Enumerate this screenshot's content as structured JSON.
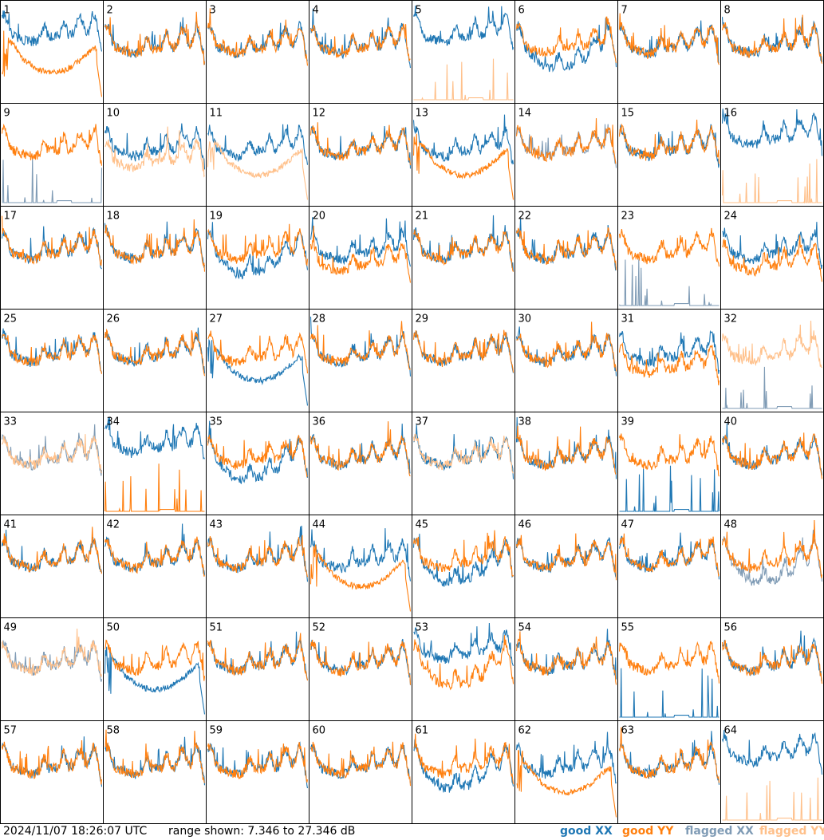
{
  "footer": {
    "timestamp": "2024/11/07 18:26:07 UTC",
    "range_text": "range shown: 7.346 to 27.346 dB"
  },
  "legend": [
    {
      "label": "good XX",
      "color": "#1f77b4"
    },
    {
      "label": "good YY",
      "color": "#ff7f0e"
    },
    {
      "label": "flagged XX",
      "color": "#7f9bb5"
    },
    {
      "label": "flagged YY",
      "color": "#ffc08a"
    }
  ],
  "chart_data": {
    "type": "line",
    "grid": "8x8 small multiples",
    "ylim": [
      7.346,
      27.346
    ],
    "y_unit": "dB",
    "panels": [
      {
        "label": "1",
        "xx": {
          "flagged": false,
          "shape": "high"
        },
        "yy": {
          "flagged": false,
          "shape": "sag"
        }
      },
      {
        "label": "2",
        "xx": {
          "flagged": false,
          "shape": "normal"
        },
        "yy": {
          "flagged": false,
          "shape": "normal"
        }
      },
      {
        "label": "3",
        "xx": {
          "flagged": false,
          "shape": "normal"
        },
        "yy": {
          "flagged": false,
          "shape": "normal"
        }
      },
      {
        "label": "4",
        "xx": {
          "flagged": false,
          "shape": "normal"
        },
        "yy": {
          "flagged": false,
          "shape": "normal"
        }
      },
      {
        "label": "5",
        "xx": {
          "flagged": false,
          "shape": "high"
        },
        "yy": {
          "flagged": true,
          "shape": "spikes"
        }
      },
      {
        "label": "6",
        "xx": {
          "flagged": false,
          "shape": "dip"
        },
        "yy": {
          "flagged": false,
          "shape": "normal"
        }
      },
      {
        "label": "7",
        "xx": {
          "flagged": false,
          "shape": "normal"
        },
        "yy": {
          "flagged": false,
          "shape": "normal"
        }
      },
      {
        "label": "8",
        "xx": {
          "flagged": false,
          "shape": "normal"
        },
        "yy": {
          "flagged": false,
          "shape": "normal"
        }
      },
      {
        "label": "9",
        "xx": {
          "flagged": true,
          "shape": "spikes"
        },
        "yy": {
          "flagged": false,
          "shape": "normal"
        }
      },
      {
        "label": "10",
        "xx": {
          "flagged": false,
          "shape": "normal"
        },
        "yy": {
          "flagged": true,
          "shape": "low"
        }
      },
      {
        "label": "11",
        "xx": {
          "flagged": false,
          "shape": "normal"
        },
        "yy": {
          "flagged": true,
          "shape": "sag"
        }
      },
      {
        "label": "12",
        "xx": {
          "flagged": false,
          "shape": "normal"
        },
        "yy": {
          "flagged": false,
          "shape": "normal"
        }
      },
      {
        "label": "13",
        "xx": {
          "flagged": false,
          "shape": "normal"
        },
        "yy": {
          "flagged": false,
          "shape": "sag"
        }
      },
      {
        "label": "14",
        "xx": {
          "flagged": true,
          "shape": "normal"
        },
        "yy": {
          "flagged": false,
          "shape": "normal"
        }
      },
      {
        "label": "15",
        "xx": {
          "flagged": false,
          "shape": "normal"
        },
        "yy": {
          "flagged": false,
          "shape": "normal"
        }
      },
      {
        "label": "16",
        "xx": {
          "flagged": false,
          "shape": "high"
        },
        "yy": {
          "flagged": true,
          "shape": "spikes"
        }
      },
      {
        "label": "17",
        "xx": {
          "flagged": false,
          "shape": "normal"
        },
        "yy": {
          "flagged": false,
          "shape": "normal"
        }
      },
      {
        "label": "18",
        "xx": {
          "flagged": false,
          "shape": "normal"
        },
        "yy": {
          "flagged": false,
          "shape": "normal"
        }
      },
      {
        "label": "19",
        "xx": {
          "flagged": false,
          "shape": "dip"
        },
        "yy": {
          "flagged": false,
          "shape": "normal"
        }
      },
      {
        "label": "20",
        "xx": {
          "flagged": false,
          "shape": "normal"
        },
        "yy": {
          "flagged": false,
          "shape": "low"
        }
      },
      {
        "label": "21",
        "xx": {
          "flagged": false,
          "shape": "normal"
        },
        "yy": {
          "flagged": false,
          "shape": "normal"
        }
      },
      {
        "label": "22",
        "xx": {
          "flagged": false,
          "shape": "normal"
        },
        "yy": {
          "flagged": false,
          "shape": "normal"
        }
      },
      {
        "label": "23",
        "xx": {
          "flagged": true,
          "shape": "spikes"
        },
        "yy": {
          "flagged": false,
          "shape": "normal"
        }
      },
      {
        "label": "24",
        "xx": {
          "flagged": false,
          "shape": "normal"
        },
        "yy": {
          "flagged": false,
          "shape": "low"
        }
      },
      {
        "label": "25",
        "xx": {
          "flagged": false,
          "shape": "normal"
        },
        "yy": {
          "flagged": false,
          "shape": "normal"
        }
      },
      {
        "label": "26",
        "xx": {
          "flagged": false,
          "shape": "normal"
        },
        "yy": {
          "flagged": false,
          "shape": "normal"
        }
      },
      {
        "label": "27",
        "xx": {
          "flagged": false,
          "shape": "sag"
        },
        "yy": {
          "flagged": false,
          "shape": "normal"
        }
      },
      {
        "label": "28",
        "xx": {
          "flagged": false,
          "shape": "normal"
        },
        "yy": {
          "flagged": false,
          "shape": "normal"
        }
      },
      {
        "label": "29",
        "xx": {
          "flagged": false,
          "shape": "normal"
        },
        "yy": {
          "flagged": false,
          "shape": "normal"
        }
      },
      {
        "label": "30",
        "xx": {
          "flagged": false,
          "shape": "normal"
        },
        "yy": {
          "flagged": false,
          "shape": "normal"
        }
      },
      {
        "label": "31",
        "xx": {
          "flagged": false,
          "shape": "normal"
        },
        "yy": {
          "flagged": false,
          "shape": "low"
        }
      },
      {
        "label": "32",
        "xx": {
          "flagged": true,
          "shape": "spikes"
        },
        "yy": {
          "flagged": true,
          "shape": "normal"
        }
      },
      {
        "label": "33",
        "xx": {
          "flagged": true,
          "shape": "normal"
        },
        "yy": {
          "flagged": true,
          "shape": "normal"
        }
      },
      {
        "label": "34",
        "xx": {
          "flagged": false,
          "shape": "high"
        },
        "yy": {
          "flagged": false,
          "shape": "spikes"
        }
      },
      {
        "label": "35",
        "xx": {
          "flagged": false,
          "shape": "dip"
        },
        "yy": {
          "flagged": false,
          "shape": "normal"
        }
      },
      {
        "label": "36",
        "xx": {
          "flagged": false,
          "shape": "normal"
        },
        "yy": {
          "flagged": false,
          "shape": "normal"
        }
      },
      {
        "label": "37",
        "xx": {
          "flagged": false,
          "shape": "normal"
        },
        "yy": {
          "flagged": true,
          "shape": "normal"
        }
      },
      {
        "label": "38",
        "xx": {
          "flagged": false,
          "shape": "normal"
        },
        "yy": {
          "flagged": false,
          "shape": "normal"
        }
      },
      {
        "label": "39",
        "xx": {
          "flagged": false,
          "shape": "spikes"
        },
        "yy": {
          "flagged": false,
          "shape": "normal"
        }
      },
      {
        "label": "40",
        "xx": {
          "flagged": false,
          "shape": "normal"
        },
        "yy": {
          "flagged": false,
          "shape": "normal"
        }
      },
      {
        "label": "41",
        "xx": {
          "flagged": false,
          "shape": "normal"
        },
        "yy": {
          "flagged": false,
          "shape": "normal"
        }
      },
      {
        "label": "42",
        "xx": {
          "flagged": false,
          "shape": "normal"
        },
        "yy": {
          "flagged": false,
          "shape": "normal"
        }
      },
      {
        "label": "43",
        "xx": {
          "flagged": false,
          "shape": "normal"
        },
        "yy": {
          "flagged": false,
          "shape": "normal"
        }
      },
      {
        "label": "44",
        "xx": {
          "flagged": false,
          "shape": "normal"
        },
        "yy": {
          "flagged": false,
          "shape": "sag"
        }
      },
      {
        "label": "45",
        "xx": {
          "flagged": false,
          "shape": "dip"
        },
        "yy": {
          "flagged": false,
          "shape": "normal"
        }
      },
      {
        "label": "46",
        "xx": {
          "flagged": false,
          "shape": "normal"
        },
        "yy": {
          "flagged": false,
          "shape": "normal"
        }
      },
      {
        "label": "47",
        "xx": {
          "flagged": false,
          "shape": "normal"
        },
        "yy": {
          "flagged": false,
          "shape": "normal"
        }
      },
      {
        "label": "48",
        "xx": {
          "flagged": true,
          "shape": "dip"
        },
        "yy": {
          "flagged": false,
          "shape": "normal"
        }
      },
      {
        "label": "49",
        "xx": {
          "flagged": true,
          "shape": "normal"
        },
        "yy": {
          "flagged": true,
          "shape": "normal"
        }
      },
      {
        "label": "50",
        "xx": {
          "flagged": false,
          "shape": "sag"
        },
        "yy": {
          "flagged": false,
          "shape": "normal"
        }
      },
      {
        "label": "51",
        "xx": {
          "flagged": false,
          "shape": "normal"
        },
        "yy": {
          "flagged": false,
          "shape": "normal"
        }
      },
      {
        "label": "52",
        "xx": {
          "flagged": false,
          "shape": "normal"
        },
        "yy": {
          "flagged": false,
          "shape": "normal"
        }
      },
      {
        "label": "53",
        "xx": {
          "flagged": false,
          "shape": "high"
        },
        "yy": {
          "flagged": false,
          "shape": "dip"
        }
      },
      {
        "label": "54",
        "xx": {
          "flagged": false,
          "shape": "normal"
        },
        "yy": {
          "flagged": false,
          "shape": "normal"
        }
      },
      {
        "label": "55",
        "xx": {
          "flagged": false,
          "shape": "spikes"
        },
        "yy": {
          "flagged": false,
          "shape": "normal"
        }
      },
      {
        "label": "56",
        "xx": {
          "flagged": false,
          "shape": "normal"
        },
        "yy": {
          "flagged": false,
          "shape": "normal"
        }
      },
      {
        "label": "57",
        "xx": {
          "flagged": false,
          "shape": "normal"
        },
        "yy": {
          "flagged": false,
          "shape": "normal"
        }
      },
      {
        "label": "58",
        "xx": {
          "flagged": false,
          "shape": "normal"
        },
        "yy": {
          "flagged": false,
          "shape": "normal"
        }
      },
      {
        "label": "59",
        "xx": {
          "flagged": false,
          "shape": "normal"
        },
        "yy": {
          "flagged": false,
          "shape": "normal"
        }
      },
      {
        "label": "60",
        "xx": {
          "flagged": false,
          "shape": "normal"
        },
        "yy": {
          "flagged": false,
          "shape": "normal"
        }
      },
      {
        "label": "61",
        "xx": {
          "flagged": false,
          "shape": "dip"
        },
        "yy": {
          "flagged": false,
          "shape": "normal"
        }
      },
      {
        "label": "62",
        "xx": {
          "flagged": false,
          "shape": "normal"
        },
        "yy": {
          "flagged": false,
          "shape": "sag"
        }
      },
      {
        "label": "63",
        "xx": {
          "flagged": false,
          "shape": "normal"
        },
        "yy": {
          "flagged": false,
          "shape": "normal"
        }
      },
      {
        "label": "64",
        "xx": {
          "flagged": false,
          "shape": "high"
        },
        "yy": {
          "flagged": true,
          "shape": "spikes"
        }
      }
    ]
  }
}
